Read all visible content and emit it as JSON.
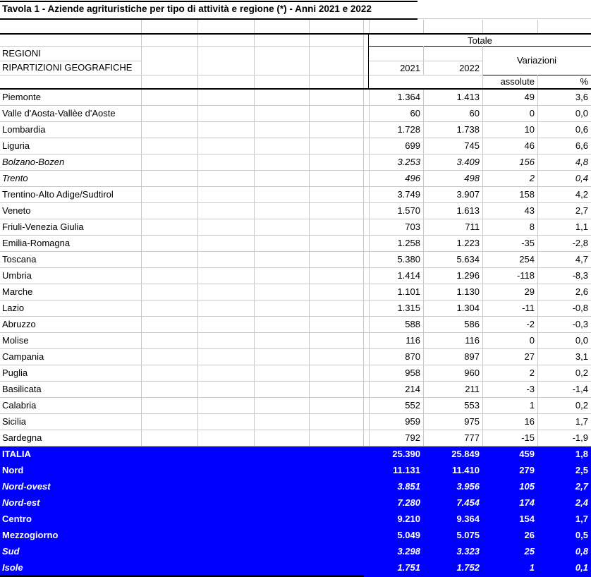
{
  "title": "Tavola 1 - Aziende agrituristiche per tipo di attività e regione (*) - Anni 2021 e 2022",
  "header": {
    "col_group": "Totale",
    "row_label_line1": "REGIONI",
    "row_label_line2": "RIPARTIZIONI GEOGRAFICHE",
    "year1": "2021",
    "year2": "2022",
    "variations": "Variazioni",
    "variations_absolute": "assolute",
    "variations_percent": "%"
  },
  "colors": {
    "highlight_blue": "#0000FF",
    "gridline": "#C8C8C8",
    "border": "#000000",
    "highlight_text": "#FFFFFF"
  },
  "rows": [
    {
      "label": "Piemonte",
      "v2021": "1.364",
      "v2022": "1.413",
      "abs": "49",
      "pct": "3,6",
      "italic": false,
      "highlight": false
    },
    {
      "label": "Valle d'Aosta-Vallèe d'Aoste",
      "v2021": "60",
      "v2022": "60",
      "abs": "0",
      "pct": "0,0",
      "italic": false,
      "highlight": false
    },
    {
      "label": "Lombardia",
      "v2021": "1.728",
      "v2022": "1.738",
      "abs": "10",
      "pct": "0,6",
      "italic": false,
      "highlight": false
    },
    {
      "label": "Liguria",
      "v2021": "699",
      "v2022": "745",
      "abs": "46",
      "pct": "6,6",
      "italic": false,
      "highlight": false
    },
    {
      "label": "Bolzano-Bozen",
      "v2021": "3.253",
      "v2022": "3.409",
      "abs": "156",
      "pct": "4,8",
      "italic": true,
      "highlight": false
    },
    {
      "label": "Trento",
      "v2021": "496",
      "v2022": "498",
      "abs": "2",
      "pct": "0,4",
      "italic": true,
      "highlight": false
    },
    {
      "label": "Trentino-Alto Adige/Sudtirol",
      "v2021": "3.749",
      "v2022": "3.907",
      "abs": "158",
      "pct": "4,2",
      "italic": false,
      "highlight": false
    },
    {
      "label": "Veneto",
      "v2021": "1.570",
      "v2022": "1.613",
      "abs": "43",
      "pct": "2,7",
      "italic": false,
      "highlight": false
    },
    {
      "label": "Friuli-Venezia Giulia",
      "v2021": "703",
      "v2022": "711",
      "abs": "8",
      "pct": "1,1",
      "italic": false,
      "highlight": false
    },
    {
      "label": "Emilia-Romagna",
      "v2021": "1.258",
      "v2022": "1.223",
      "abs": "-35",
      "pct": "-2,8",
      "italic": false,
      "highlight": false
    },
    {
      "label": "Toscana",
      "v2021": "5.380",
      "v2022": "5.634",
      "abs": "254",
      "pct": "4,7",
      "italic": false,
      "highlight": false
    },
    {
      "label": "Umbria",
      "v2021": "1.414",
      "v2022": "1.296",
      "abs": "-118",
      "pct": "-8,3",
      "italic": false,
      "highlight": false
    },
    {
      "label": "Marche",
      "v2021": "1.101",
      "v2022": "1.130",
      "abs": "29",
      "pct": "2,6",
      "italic": false,
      "highlight": false
    },
    {
      "label": "Lazio",
      "v2021": "1.315",
      "v2022": "1.304",
      "abs": "-11",
      "pct": "-0,8",
      "italic": false,
      "highlight": false
    },
    {
      "label": "Abruzzo",
      "v2021": "588",
      "v2022": "586",
      "abs": "-2",
      "pct": "-0,3",
      "italic": false,
      "highlight": false
    },
    {
      "label": "Molise",
      "v2021": "116",
      "v2022": "116",
      "abs": "0",
      "pct": "0,0",
      "italic": false,
      "highlight": false
    },
    {
      "label": "Campania",
      "v2021": "870",
      "v2022": "897",
      "abs": "27",
      "pct": "3,1",
      "italic": false,
      "highlight": false
    },
    {
      "label": "Puglia",
      "v2021": "958",
      "v2022": "960",
      "abs": "2",
      "pct": "0,2",
      "italic": false,
      "highlight": false
    },
    {
      "label": "Basilicata",
      "v2021": "214",
      "v2022": "211",
      "abs": "-3",
      "pct": "-1,4",
      "italic": false,
      "highlight": false
    },
    {
      "label": "Calabria",
      "v2021": "552",
      "v2022": "553",
      "abs": "1",
      "pct": "0,2",
      "italic": false,
      "highlight": false
    },
    {
      "label": "Sicilia",
      "v2021": "959",
      "v2022": "975",
      "abs": "16",
      "pct": "1,7",
      "italic": false,
      "highlight": false
    },
    {
      "label": "Sardegna",
      "v2021": "792",
      "v2022": "777",
      "abs": "-15",
      "pct": "-1,9",
      "italic": false,
      "highlight": false
    },
    {
      "label": "ITALIA",
      "v2021": "25.390",
      "v2022": "25.849",
      "abs": "459",
      "pct": "1,8",
      "italic": false,
      "highlight": true
    },
    {
      "label": "Nord",
      "v2021": "11.131",
      "v2022": "11.410",
      "abs": "279",
      "pct": "2,5",
      "italic": false,
      "highlight": true
    },
    {
      "label": "Nord-ovest",
      "v2021": "3.851",
      "v2022": "3.956",
      "abs": "105",
      "pct": "2,7",
      "italic": true,
      "highlight": true
    },
    {
      "label": "Nord-est",
      "v2021": "7.280",
      "v2022": "7.454",
      "abs": "174",
      "pct": "2,4",
      "italic": true,
      "highlight": true
    },
    {
      "label": "Centro",
      "v2021": "9.210",
      "v2022": "9.364",
      "abs": "154",
      "pct": "1,7",
      "italic": false,
      "highlight": true
    },
    {
      "label": "Mezzogiorno",
      "v2021": "5.049",
      "v2022": "5.075",
      "abs": "26",
      "pct": "0,5",
      "italic": false,
      "highlight": true
    },
    {
      "label": "Sud",
      "v2021": "3.298",
      "v2022": "3.323",
      "abs": "25",
      "pct": "0,8",
      "italic": true,
      "highlight": true
    },
    {
      "label": "Isole",
      "v2021": "1.751",
      "v2022": "1.752",
      "abs": "1",
      "pct": "0,1",
      "italic": true,
      "highlight": true
    }
  ]
}
